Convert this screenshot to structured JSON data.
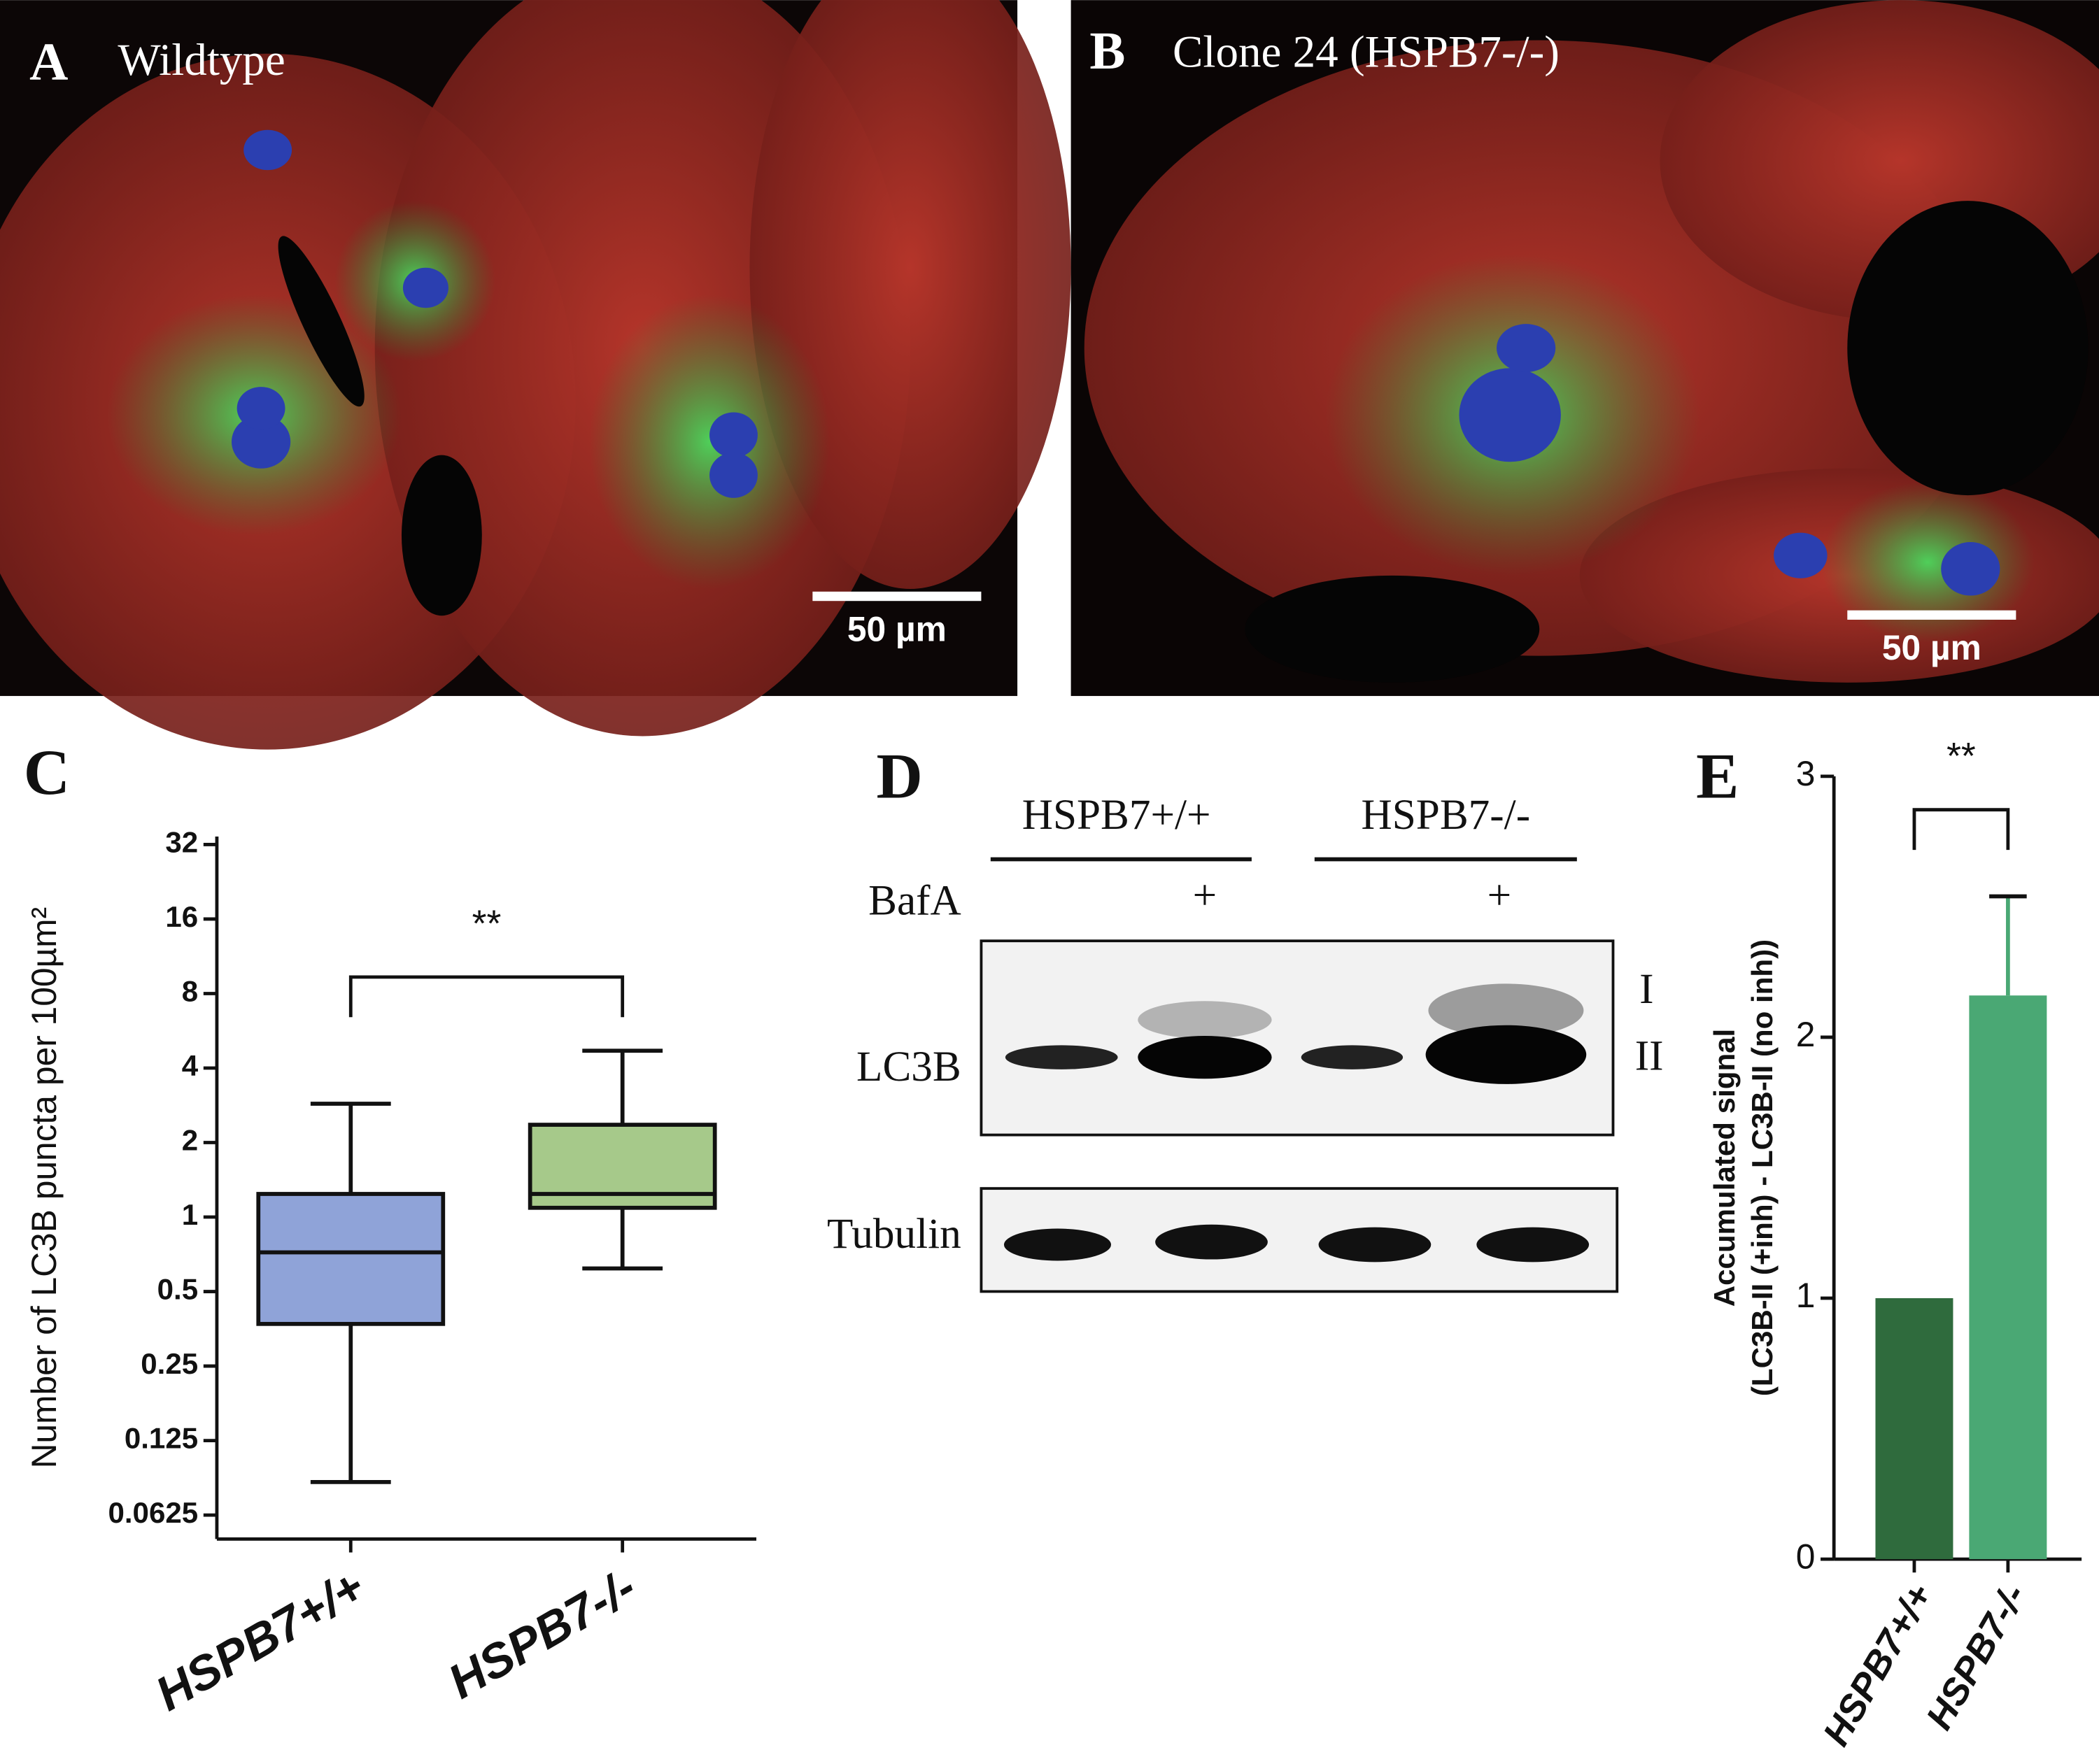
{
  "panels": {
    "a": {
      "letter": "A",
      "title": "Wildtype",
      "scale_bar": "50 µm"
    },
    "b": {
      "letter": "B",
      "title": "Clone 24 (HSPB7-/-)",
      "scale_bar": "50 µm"
    },
    "d": {
      "letter": "D",
      "groups": [
        "HSPB7+/+",
        "HSPB7-/-"
      ],
      "treatment": "BafA",
      "marks": [
        "+",
        "+"
      ],
      "blots": [
        "LC3B",
        "Tubulin"
      ],
      "bands": [
        "I",
        "II"
      ]
    }
  },
  "chart_data": [
    {
      "type": "box",
      "letter": "C",
      "ylabel": "Number of LC3B puncta per 100µm²",
      "categories": [
        "HSPB7+/+",
        "HSPB7-/-"
      ],
      "boxes": [
        {
          "min": 0.085,
          "q1": 0.37,
          "median": 0.72,
          "q3": 1.24,
          "max": 2.87,
          "color": "#8fa3d8"
        },
        {
          "min": 0.62,
          "q1": 1.09,
          "median": 1.24,
          "q3": 2.36,
          "max": 4.7,
          "color": "#a6c98a"
        }
      ],
      "yscale": "log",
      "log_base": 2,
      "ylim": [
        0.05,
        32
      ],
      "yticks": [
        0.0625,
        0.125,
        0.25,
        0.5,
        1,
        2,
        4,
        8,
        16,
        32
      ],
      "significance": "**"
    },
    {
      "type": "bar",
      "letter": "E",
      "ylabel": [
        "Accumulated signal",
        "(LC3B-II (+inh) - LC3B-II (no inh))"
      ],
      "categories": [
        "HSPB7+/+",
        "HSPB7-/-"
      ],
      "values": [
        1.0,
        2.16
      ],
      "errors": [
        null,
        0.38
      ],
      "colors": [
        "#2f6b3d",
        "#4aa874"
      ],
      "ylim": [
        0,
        3
      ],
      "yticks": [
        0,
        1,
        2,
        3
      ],
      "significance": "**"
    }
  ]
}
